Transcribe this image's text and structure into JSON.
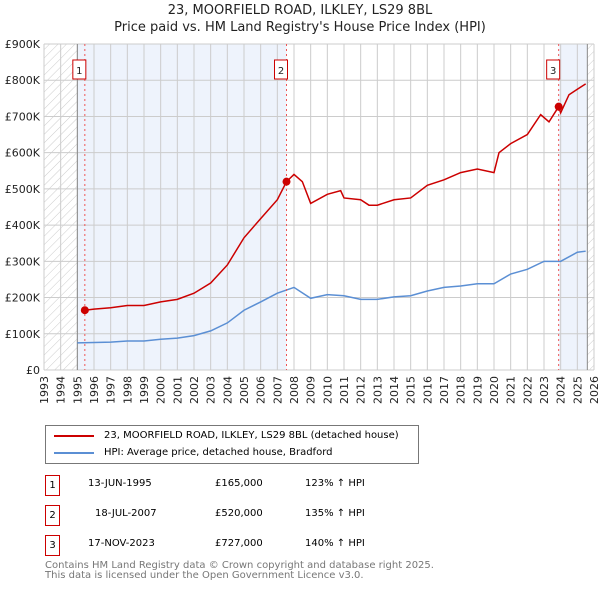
{
  "title": "23, MOORFIELD ROAD, ILKLEY, LS29 8BL",
  "subtitle": "Price paid vs. HM Land Registry's House Price Index (HPI)",
  "chart_data": {
    "type": "line",
    "xlim": [
      1993,
      2026
    ],
    "ylim": [
      0,
      900000
    ],
    "yticks": [
      {
        "v": 0,
        "l": "£0"
      },
      {
        "v": 100000,
        "l": "£100K"
      },
      {
        "v": 200000,
        "l": "£200K"
      },
      {
        "v": 300000,
        "l": "£300K"
      },
      {
        "v": 400000,
        "l": "£400K"
      },
      {
        "v": 500000,
        "l": "£500K"
      },
      {
        "v": 600000,
        "l": "£600K"
      },
      {
        "v": 700000,
        "l": "£700K"
      },
      {
        "v": 800000,
        "l": "£800K"
      },
      {
        "v": 900000,
        "l": "£900K"
      }
    ],
    "xticks": [
      "1993",
      "1994",
      "1995",
      "1996",
      "1997",
      "1998",
      "1999",
      "2000",
      "2001",
      "2002",
      "2003",
      "2004",
      "2005",
      "2006",
      "2007",
      "2008",
      "2009",
      "2010",
      "2011",
      "2012",
      "2013",
      "2014",
      "2015",
      "2016",
      "2017",
      "2018",
      "2019",
      "2020",
      "2021",
      "2022",
      "2023",
      "2024",
      "2025",
      "2026"
    ],
    "series": [
      {
        "name": "23, MOORFIELD ROAD, ILKLEY, LS29 8BL (detached house)",
        "color": "#cc0000",
        "x": [
          1995.45,
          1996,
          1997,
          1998,
          1999,
          2000,
          2001,
          2002,
          2003,
          2004,
          2005,
          2006,
          2007,
          2007.55,
          2008,
          2008.5,
          2009,
          2010,
          2010.8,
          2011,
          2012,
          2012.5,
          2013,
          2014,
          2015,
          2016,
          2017,
          2018,
          2019,
          2020,
          2020.3,
          2021,
          2022,
          2022.8,
          2023.3,
          2023.88,
          2024,
          2024.5,
          2025,
          2025.5
        ],
        "y": [
          165000,
          168000,
          172000,
          178000,
          178000,
          188000,
          195000,
          212000,
          240000,
          290000,
          365000,
          418000,
          470000,
          520000,
          540000,
          520000,
          460000,
          485000,
          495000,
          475000,
          470000,
          455000,
          455000,
          470000,
          475000,
          510000,
          525000,
          545000,
          555000,
          545000,
          600000,
          625000,
          650000,
          705000,
          685000,
          727000,
          710000,
          760000,
          775000,
          790000
        ]
      },
      {
        "name": "HPI: Average price, detached house, Bradford",
        "color": "#5b8fd4",
        "x": [
          1995,
          1996,
          1997,
          1998,
          1999,
          2000,
          2001,
          2002,
          2003,
          2004,
          2005,
          2006,
          2007,
          2008,
          2009,
          2010,
          2011,
          2012,
          2013,
          2014,
          2015,
          2016,
          2017,
          2018,
          2019,
          2020,
          2021,
          2022,
          2023,
          2024,
          2025,
          2025.5
        ],
        "y": [
          75000,
          76000,
          77000,
          80000,
          80000,
          85000,
          88000,
          95000,
          108000,
          130000,
          165000,
          188000,
          212000,
          228000,
          198000,
          208000,
          205000,
          195000,
          195000,
          202000,
          205000,
          218000,
          228000,
          232000,
          238000,
          238000,
          265000,
          278000,
          300000,
          300000,
          325000,
          328000
        ]
      }
    ],
    "sales": [
      {
        "id": "1",
        "x": 1995.45,
        "price": 165000,
        "date": "13-JUN-1995",
        "price_label": "£165,000",
        "hpi": "123% ↑ HPI"
      },
      {
        "id": "2",
        "x": 2007.55,
        "price": 520000,
        "date": "18-JUL-2007",
        "price_label": "£520,000",
        "hpi": "135% ↑ HPI"
      },
      {
        "id": "3",
        "x": 2023.88,
        "price": 727000,
        "date": "17-NOV-2023",
        "price_label": "£727,000",
        "hpi": "140% ↑ HPI"
      }
    ],
    "data_start": 1995,
    "data_end": 2025.6
  },
  "legend": {
    "red": "23, MOORFIELD ROAD, ILKLEY, LS29 8BL (detached house)",
    "blue": "HPI: Average price, detached house, Bradford"
  },
  "footer": [
    "Contains HM Land Registry data © Crown copyright and database right 2025.",
    "This data is licensed under the Open Government Licence v3.0."
  ]
}
